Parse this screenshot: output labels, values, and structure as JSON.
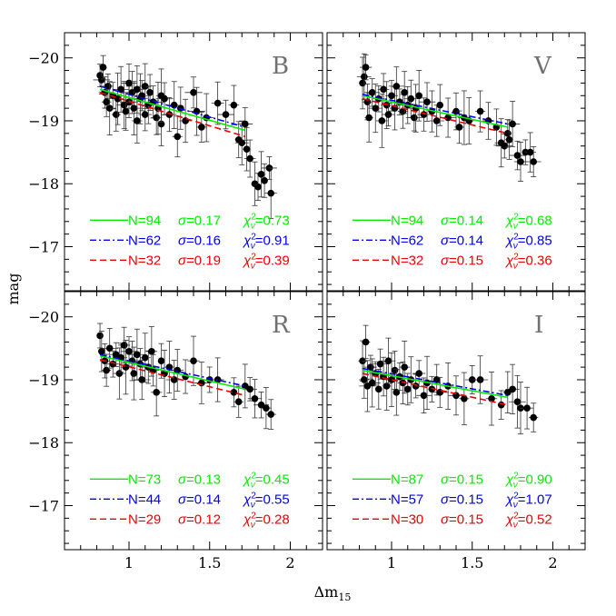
{
  "chart_data": {
    "type": "scatter",
    "xlabel_main": "Δm",
    "xlabel_sub": "15",
    "ylabel": "mag",
    "xlim": [
      0.6,
      2.2
    ],
    "ylim": [
      -16.3,
      -20.4
    ],
    "xticks": [
      {
        "v": 1,
        "label": "1"
      },
      {
        "v": 1.5,
        "label": "1.5"
      },
      {
        "v": 2,
        "label": "2"
      }
    ],
    "yticks": [
      {
        "v": -20,
        "label": "−20"
      },
      {
        "v": -19,
        "label": "−19"
      },
      {
        "v": -18,
        "label": "−18"
      },
      {
        "v": -17,
        "label": "−17"
      }
    ],
    "colors": {
      "green": "#00ee00",
      "blue": "#0000ee",
      "red": "#ee0000",
      "points": "#000000",
      "panel_label": "#707070"
    },
    "panels": [
      {
        "label": "B",
        "fits": [
          {
            "style": "solid",
            "color": "green",
            "N": "N=94",
            "sigma": "0.17",
            "chi": "0.73",
            "x": [
              0.82,
              1.72
            ],
            "y": [
              -19.5,
              -18.85
            ]
          },
          {
            "style": "dashdot",
            "color": "blue",
            "N": "N=62",
            "sigma": "0.16",
            "chi": "0.91",
            "x": [
              0.82,
              1.72
            ],
            "y": [
              -19.55,
              -18.9
            ]
          },
          {
            "style": "dashed",
            "color": "red",
            "N": "N=32",
            "sigma": "0.19",
            "chi": "0.39",
            "x": [
              0.82,
              1.72
            ],
            "y": [
              -19.45,
              -18.75
            ]
          }
        ],
        "points": [
          [
            0.82,
            -19.72
          ],
          [
            0.83,
            -19.65
          ],
          [
            0.84,
            -19.85
          ],
          [
            0.85,
            -19.45
          ],
          [
            0.86,
            -19.3
          ],
          [
            0.87,
            -19.55
          ],
          [
            0.88,
            -19.2
          ],
          [
            0.9,
            -19.4
          ],
          [
            0.92,
            -19.1
          ],
          [
            0.93,
            -19.35
          ],
          [
            0.95,
            -19.5
          ],
          [
            0.97,
            -19.25
          ],
          [
            0.98,
            -19.15
          ],
          [
            1.0,
            -19.3
          ],
          [
            1.0,
            -19.6
          ],
          [
            1.02,
            -19.45
          ],
          [
            1.03,
            -19.2
          ],
          [
            1.05,
            -19.0
          ],
          [
            1.05,
            -19.5
          ],
          [
            1.07,
            -19.35
          ],
          [
            1.08,
            -19.4
          ],
          [
            1.1,
            -19.55
          ],
          [
            1.1,
            -19.1
          ],
          [
            1.12,
            -19.25
          ],
          [
            1.13,
            -19.45
          ],
          [
            1.15,
            -19.3
          ],
          [
            1.17,
            -19.05
          ],
          [
            1.18,
            -19.2
          ],
          [
            1.2,
            -18.95
          ],
          [
            1.2,
            -19.4
          ],
          [
            1.22,
            -19.35
          ],
          [
            1.25,
            -19.1
          ],
          [
            1.28,
            -19.25
          ],
          [
            1.3,
            -18.75
          ],
          [
            1.32,
            -19.2
          ],
          [
            1.35,
            -19.0
          ],
          [
            1.4,
            -19.45
          ],
          [
            1.42,
            -19.15
          ],
          [
            1.45,
            -18.9
          ],
          [
            1.48,
            -19.05
          ],
          [
            1.55,
            -19.28
          ],
          [
            1.6,
            -19.1
          ],
          [
            1.65,
            -19.25
          ],
          [
            1.68,
            -18.7
          ],
          [
            1.7,
            -18.65
          ],
          [
            1.72,
            -18.95
          ],
          [
            1.73,
            -18.55
          ],
          [
            1.75,
            -18.4
          ],
          [
            1.78,
            -18.0
          ],
          [
            1.8,
            -17.95
          ],
          [
            1.82,
            -18.15
          ],
          [
            1.84,
            -18.05
          ],
          [
            1.87,
            -18.25
          ],
          [
            1.88,
            -17.85
          ]
        ],
        "legend_base_y": -17.35
      },
      {
        "label": "V",
        "fits": [
          {
            "style": "solid",
            "color": "green",
            "N": "N=94",
            "sigma": "0.14",
            "chi": "0.68",
            "x": [
              0.82,
              1.72
            ],
            "y": [
              -19.4,
              -18.9
            ]
          },
          {
            "style": "dashdot",
            "color": "blue",
            "N": "N=62",
            "sigma": "0.14",
            "chi": "0.85",
            "x": [
              0.82,
              1.72
            ],
            "y": [
              -19.42,
              -18.95
            ]
          },
          {
            "style": "dashed",
            "color": "red",
            "N": "N=32",
            "sigma": "0.15",
            "chi": "0.36",
            "x": [
              0.82,
              1.72
            ],
            "y": [
              -19.35,
              -18.8
            ]
          }
        ],
        "points": [
          [
            0.82,
            -19.6
          ],
          [
            0.83,
            -19.7
          ],
          [
            0.84,
            -19.85
          ],
          [
            0.85,
            -19.3
          ],
          [
            0.86,
            -19.05
          ],
          [
            0.88,
            -19.45
          ],
          [
            0.9,
            -19.2
          ],
          [
            0.92,
            -19.35
          ],
          [
            0.94,
            -19.0
          ],
          [
            0.95,
            -19.5
          ],
          [
            0.97,
            -19.25
          ],
          [
            0.98,
            -19.1
          ],
          [
            1.0,
            -19.4
          ],
          [
            1.02,
            -19.2
          ],
          [
            1.03,
            -19.55
          ],
          [
            1.05,
            -19.3
          ],
          [
            1.07,
            -19.15
          ],
          [
            1.08,
            -19.45
          ],
          [
            1.1,
            -19.25
          ],
          [
            1.12,
            -19.35
          ],
          [
            1.14,
            -19.05
          ],
          [
            1.15,
            -19.2
          ],
          [
            1.17,
            -19.4
          ],
          [
            1.2,
            -19.1
          ],
          [
            1.22,
            -19.3
          ],
          [
            1.25,
            -19.15
          ],
          [
            1.28,
            -19.0
          ],
          [
            1.3,
            -19.25
          ],
          [
            1.35,
            -19.05
          ],
          [
            1.4,
            -19.15
          ],
          [
            1.42,
            -18.9
          ],
          [
            1.45,
            -19.05
          ],
          [
            1.48,
            -19.0
          ],
          [
            1.55,
            -19.15
          ],
          [
            1.6,
            -19.0
          ],
          [
            1.65,
            -18.9
          ],
          [
            1.68,
            -18.65
          ],
          [
            1.7,
            -18.6
          ],
          [
            1.72,
            -18.8
          ],
          [
            1.73,
            -18.7
          ],
          [
            1.75,
            -18.95
          ],
          [
            1.78,
            -18.45
          ],
          [
            1.8,
            -18.35
          ],
          [
            1.83,
            -18.5
          ],
          [
            1.86,
            -18.5
          ],
          [
            1.88,
            -18.35
          ]
        ],
        "legend_base_y": -17.35
      },
      {
        "label": "R",
        "fits": [
          {
            "style": "solid",
            "color": "green",
            "N": "N=73",
            "sigma": "0.13",
            "chi": "0.45",
            "x": [
              0.82,
              1.72
            ],
            "y": [
              -19.38,
              -18.85
            ]
          },
          {
            "style": "dashdot",
            "color": "blue",
            "N": "N=44",
            "sigma": "0.14",
            "chi": "0.55",
            "x": [
              0.82,
              1.72
            ],
            "y": [
              -19.4,
              -18.9
            ]
          },
          {
            "style": "dashed",
            "color": "red",
            "N": "N=29",
            "sigma": "0.12",
            "chi": "0.28",
            "x": [
              0.82,
              1.72
            ],
            "y": [
              -19.32,
              -18.75
            ]
          }
        ],
        "points": [
          [
            0.82,
            -19.7
          ],
          [
            0.83,
            -19.45
          ],
          [
            0.85,
            -19.3
          ],
          [
            0.86,
            -19.15
          ],
          [
            0.88,
            -19.5
          ],
          [
            0.9,
            -19.25
          ],
          [
            0.92,
            -19.4
          ],
          [
            0.94,
            -19.1
          ],
          [
            0.95,
            -19.35
          ],
          [
            0.97,
            -19.55
          ],
          [
            0.98,
            -19.2
          ],
          [
            1.0,
            -19.45
          ],
          [
            1.02,
            -19.3
          ],
          [
            1.03,
            -19.1
          ],
          [
            1.05,
            -19.4
          ],
          [
            1.07,
            -19.25
          ],
          [
            1.08,
            -19.0
          ],
          [
            1.1,
            -19.35
          ],
          [
            1.12,
            -19.2
          ],
          [
            1.14,
            -19.45
          ],
          [
            1.15,
            -19.15
          ],
          [
            1.17,
            -18.8
          ],
          [
            1.2,
            -19.3
          ],
          [
            1.22,
            -19.1
          ],
          [
            1.25,
            -19.2
          ],
          [
            1.28,
            -19.0
          ],
          [
            1.3,
            -19.15
          ],
          [
            1.35,
            -19.05
          ],
          [
            1.4,
            -19.3
          ],
          [
            1.45,
            -18.95
          ],
          [
            1.5,
            -19.0
          ],
          [
            1.55,
            -19.0
          ],
          [
            1.65,
            -18.8
          ],
          [
            1.68,
            -18.65
          ],
          [
            1.72,
            -18.9
          ],
          [
            1.75,
            -18.85
          ],
          [
            1.78,
            -18.7
          ],
          [
            1.82,
            -18.6
          ],
          [
            1.85,
            -18.55
          ],
          [
            1.88,
            -18.45
          ]
        ],
        "legend_base_y": -17.35
      },
      {
        "label": "I",
        "fits": [
          {
            "style": "solid",
            "color": "green",
            "N": "N=87",
            "sigma": "0.15",
            "chi": "0.90",
            "x": [
              0.82,
              1.72
            ],
            "y": [
              -19.15,
              -18.72
            ]
          },
          {
            "style": "dashdot",
            "color": "blue",
            "N": "N=57",
            "sigma": "0.15",
            "chi": "1.07",
            "x": [
              0.82,
              1.72
            ],
            "y": [
              -19.18,
              -18.75
            ]
          },
          {
            "style": "dashed",
            "color": "red",
            "N": "N=30",
            "sigma": "0.15",
            "chi": "0.52",
            "x": [
              0.82,
              1.72
            ],
            "y": [
              -19.1,
              -18.6
            ]
          }
        ],
        "points": [
          [
            0.82,
            -19.3
          ],
          [
            0.83,
            -19.0
          ],
          [
            0.84,
            -19.6
          ],
          [
            0.85,
            -18.9
          ],
          [
            0.87,
            -19.2
          ],
          [
            0.88,
            -18.95
          ],
          [
            0.9,
            -19.1
          ],
          [
            0.92,
            -18.85
          ],
          [
            0.93,
            -19.25
          ],
          [
            0.95,
            -19.05
          ],
          [
            0.97,
            -18.9
          ],
          [
            0.98,
            -19.3
          ],
          [
            1.0,
            -19.0
          ],
          [
            1.02,
            -19.15
          ],
          [
            1.03,
            -18.8
          ],
          [
            1.05,
            -19.05
          ],
          [
            1.07,
            -18.95
          ],
          [
            1.08,
            -19.2
          ],
          [
            1.1,
            -18.85
          ],
          [
            1.12,
            -19.0
          ],
          [
            1.15,
            -18.9
          ],
          [
            1.17,
            -19.1
          ],
          [
            1.2,
            -18.75
          ],
          [
            1.22,
            -18.95
          ],
          [
            1.25,
            -18.85
          ],
          [
            1.28,
            -19.0
          ],
          [
            1.3,
            -18.8
          ],
          [
            1.35,
            -18.9
          ],
          [
            1.4,
            -18.75
          ],
          [
            1.45,
            -18.7
          ],
          [
            1.5,
            -19.0
          ],
          [
            1.55,
            -19.0
          ],
          [
            1.62,
            -18.7
          ],
          [
            1.68,
            -18.6
          ],
          [
            1.72,
            -18.8
          ],
          [
            1.75,
            -18.85
          ],
          [
            1.78,
            -18.65
          ],
          [
            1.8,
            -18.55
          ],
          [
            1.84,
            -18.55
          ],
          [
            1.88,
            -18.4
          ]
        ],
        "legend_base_y": -17.35
      }
    ]
  }
}
